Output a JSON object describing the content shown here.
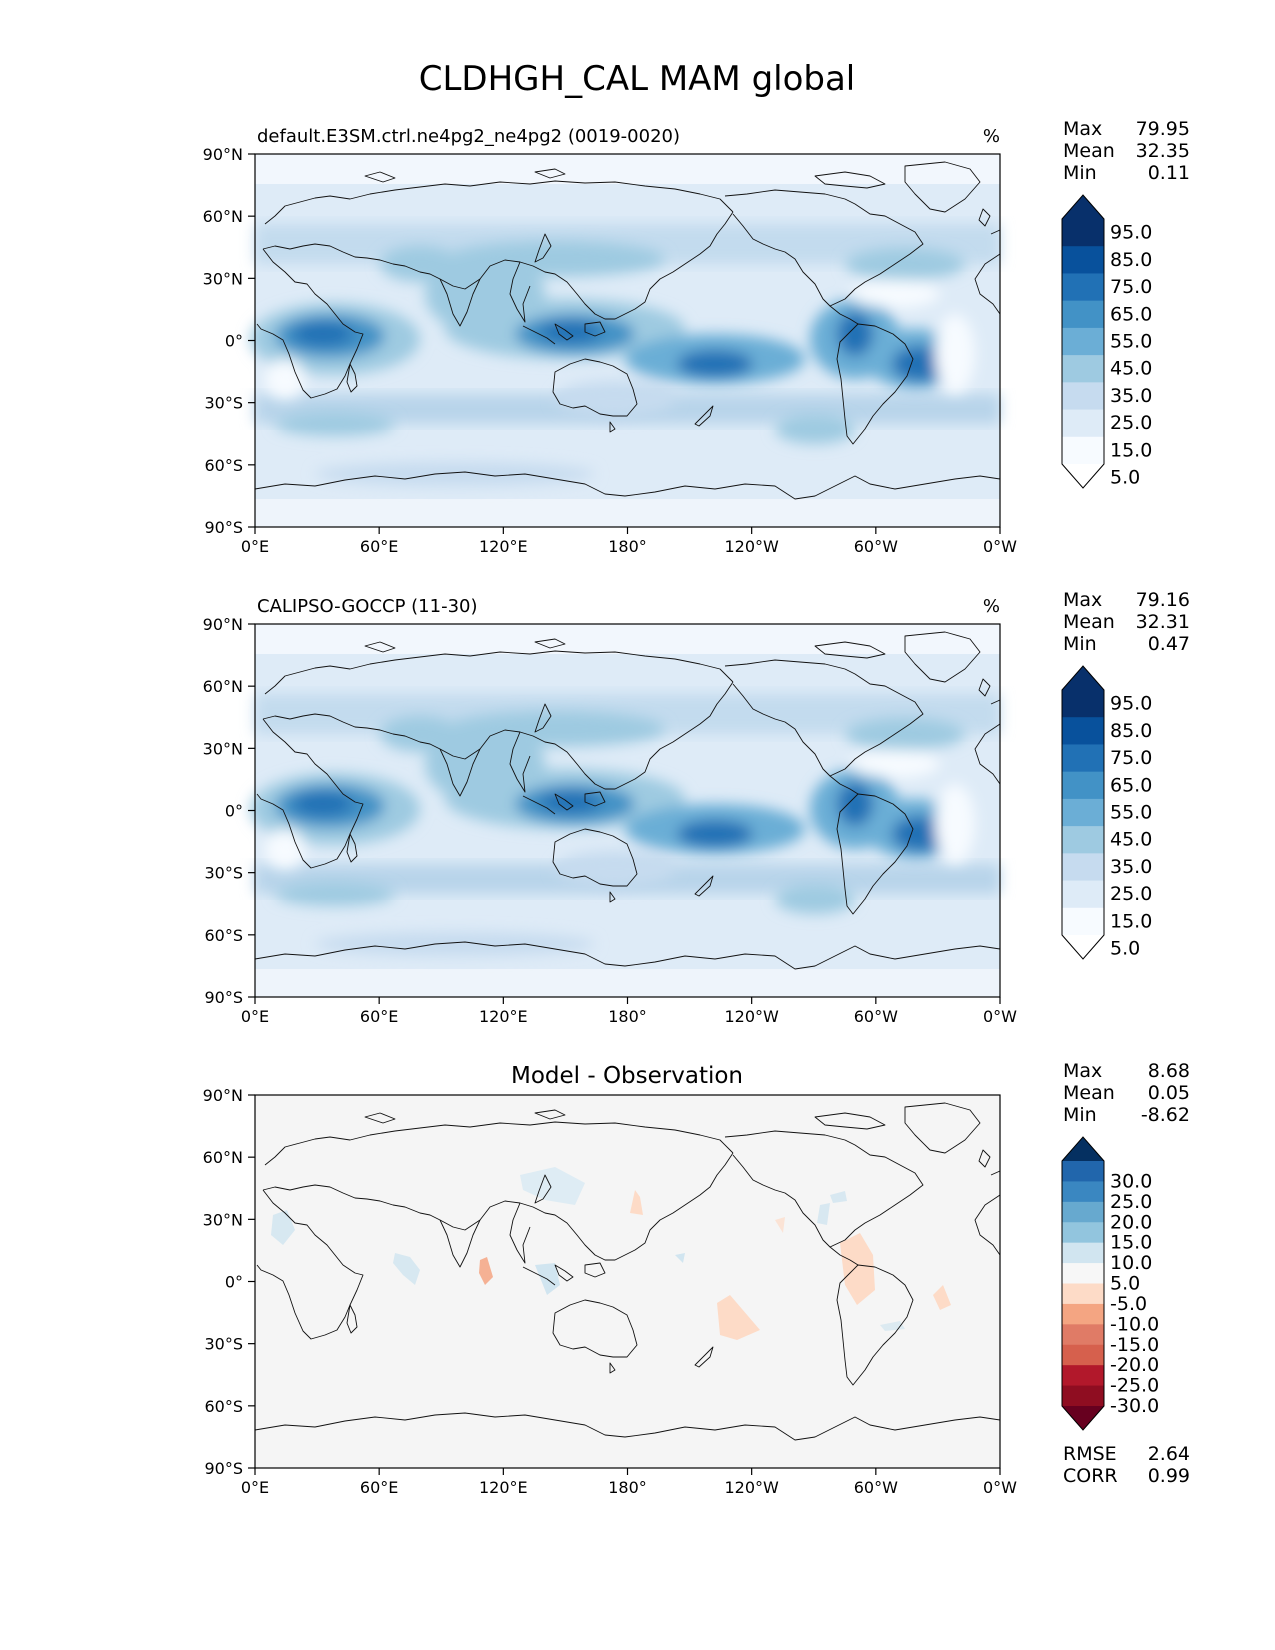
{
  "figure": {
    "title": "CLDHGH_CAL MAM global"
  },
  "axes": {
    "lon_ticks": [
      "0°E",
      "60°E",
      "120°E",
      "180°",
      "120°W",
      "60°W",
      "0°W"
    ],
    "lat_ticks": [
      "90°N",
      "60°N",
      "30°N",
      "0°",
      "30°S",
      "60°S",
      "90°S"
    ]
  },
  "panels": [
    {
      "id": "model",
      "title": "default.E3SM.ctrl.ne4pg2_ne4pg2 (0019-0020)",
      "units": "%",
      "stats": [
        {
          "label": "Max",
          "value": "79.95"
        },
        {
          "label": "Mean",
          "value": "32.35"
        },
        {
          "label": "Min",
          "value": "0.11"
        }
      ],
      "colorbar": {
        "labels": [
          "95.0",
          "85.0",
          "75.0",
          "65.0",
          "55.0",
          "45.0",
          "35.0",
          "25.0",
          "15.0",
          "5.0"
        ],
        "colors": [
          "#08306b",
          "#08519c",
          "#2171b5",
          "#4292c6",
          "#6baed6",
          "#9ecae1",
          "#c6dbef",
          "#deebf7",
          "#f7fbff"
        ]
      }
    },
    {
      "id": "obs",
      "title": "CALIPSO-GOCCP (11-30)",
      "units": "%",
      "stats": [
        {
          "label": "Max",
          "value": "79.16"
        },
        {
          "label": "Mean",
          "value": "32.31"
        },
        {
          "label": "Min",
          "value": "0.47"
        }
      ],
      "colorbar": {
        "labels": [
          "95.0",
          "85.0",
          "75.0",
          "65.0",
          "55.0",
          "45.0",
          "35.0",
          "25.0",
          "15.0",
          "5.0"
        ],
        "colors": [
          "#08306b",
          "#08519c",
          "#2171b5",
          "#4292c6",
          "#6baed6",
          "#9ecae1",
          "#c6dbef",
          "#deebf7",
          "#f7fbff"
        ]
      }
    },
    {
      "id": "diff",
      "title": "Model - Observation",
      "units": "",
      "stats": [
        {
          "label": "Max",
          "value": "8.68"
        },
        {
          "label": "Mean",
          "value": "0.05"
        },
        {
          "label": "Min",
          "value": "-8.62"
        }
      ],
      "colorbar": {
        "labels": [
          "30.0",
          "25.0",
          "20.0",
          "15.0",
          "10.0",
          "5.0",
          "-5.0",
          "-10.0",
          "-15.0",
          "-20.0",
          "-25.0",
          "-30.0"
        ],
        "colors": [
          "#2166ac",
          "#3a87c1",
          "#67a9cf",
          "#92c5de",
          "#d1e5f0",
          "#f7f7f7",
          "#fddbc7",
          "#f4a582",
          "#e07b66",
          "#d6604d",
          "#b2182b",
          "#8f0d21"
        ]
      },
      "footer": [
        {
          "label": "RMSE",
          "value": "2.64"
        },
        {
          "label": "CORR",
          "value": "0.99"
        }
      ]
    }
  ]
}
